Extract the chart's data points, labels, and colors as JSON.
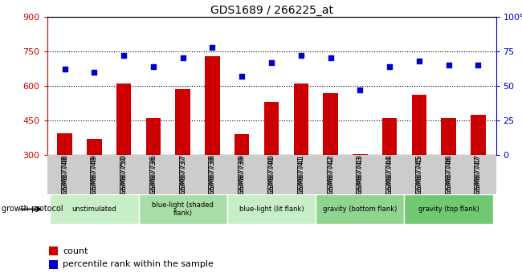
{
  "title": "GDS1689 / 266225_at",
  "samples": [
    "GSM87748",
    "GSM87749",
    "GSM87750",
    "GSM87736",
    "GSM87737",
    "GSM87738",
    "GSM87739",
    "GSM87740",
    "GSM87741",
    "GSM87742",
    "GSM87743",
    "GSM87744",
    "GSM87745",
    "GSM87746",
    "GSM87747"
  ],
  "counts": [
    395,
    370,
    610,
    460,
    585,
    730,
    390,
    530,
    610,
    570,
    305,
    460,
    560,
    460,
    475
  ],
  "percentile": [
    62,
    60,
    72,
    64,
    70,
    78,
    57,
    67,
    72,
    70,
    47,
    64,
    68,
    65,
    65
  ],
  "ylim_left": [
    300,
    900
  ],
  "ylim_right": [
    0,
    100
  ],
  "yticks_left": [
    300,
    450,
    600,
    750,
    900
  ],
  "yticks_right": [
    0,
    25,
    50,
    75,
    100
  ],
  "groups": [
    {
      "label": "unstimulated",
      "indices": [
        0,
        1,
        2
      ],
      "color": "#c8eec8"
    },
    {
      "label": "blue-light (shaded\nflank)",
      "indices": [
        3,
        4,
        5
      ],
      "color": "#a8dea8"
    },
    {
      "label": "blue-light (lit flank)",
      "indices": [
        6,
        7,
        8
      ],
      "color": "#c8eec8"
    },
    {
      "label": "gravity (bottom flank)",
      "indices": [
        9,
        10,
        11
      ],
      "color": "#90d490"
    },
    {
      "label": "gravity (top flank)",
      "indices": [
        12,
        13,
        14
      ],
      "color": "#70c870"
    }
  ],
  "bar_color": "#cc0000",
  "dot_color": "#0000cc",
  "left_axis_color": "#cc0000",
  "right_axis_color": "#0000cc",
  "bar_width": 0.5,
  "dot_size": 25,
  "legend_items": [
    "count",
    "percentile rank within the sample"
  ],
  "growth_protocol_label": "growth protocol"
}
